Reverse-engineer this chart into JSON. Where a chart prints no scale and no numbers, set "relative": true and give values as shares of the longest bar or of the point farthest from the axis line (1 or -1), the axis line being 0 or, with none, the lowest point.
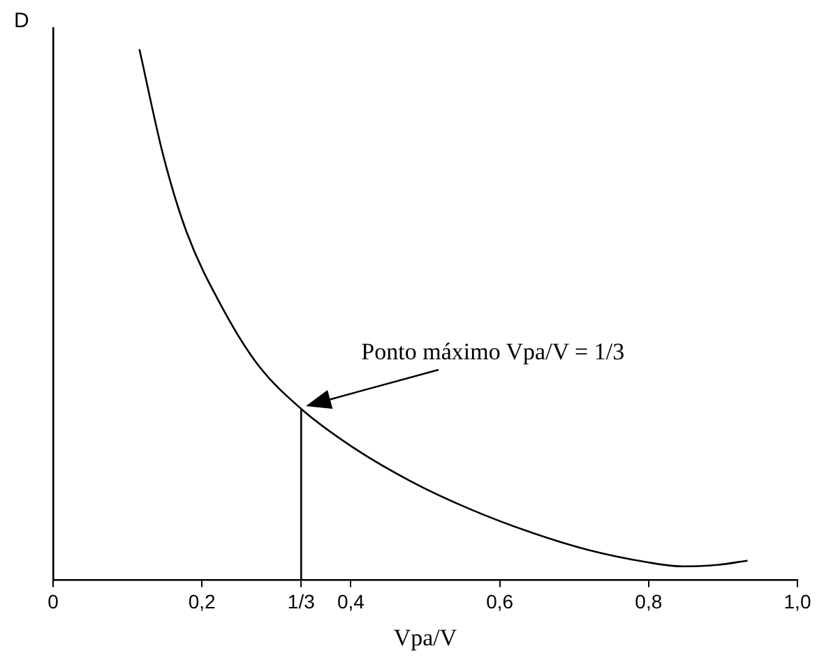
{
  "chart_data": {
    "type": "line",
    "xlabel": "Vpa/V",
    "ylabel": "D",
    "relative": true,
    "grid": false,
    "legend": false,
    "marker": "none",
    "line_style": "solid",
    "xlim": [
      0,
      1.0
    ],
    "xticks": [
      0,
      {
        "value": 0.2,
        "label": "0,2"
      },
      {
        "value": 0.3333,
        "label": "1/3"
      },
      {
        "value": 0.4,
        "label": "0,4"
      },
      {
        "value": 0.6,
        "label": "0,6"
      },
      {
        "value": 0.8,
        "label": "0,8"
      },
      {
        "value": 1.0,
        "label": "1,0"
      }
    ],
    "series": [
      {
        "color": "#000000",
        "x": [
          0.116,
          0.148,
          0.179,
          0.227,
          0.275,
          0.333,
          0.402,
          0.481,
          0.56,
          0.64,
          0.719,
          0.798,
          0.846,
          0.894,
          0.933
        ],
        "values": [
          1.0,
          0.8,
          0.657,
          0.514,
          0.406,
          0.323,
          0.251,
          0.186,
          0.134,
          0.091,
          0.057,
          0.034,
          0.026,
          0.029,
          0.037
        ]
      },
      {
        "color": "#000000",
        "x": [
          0.3333,
          0.3333
        ],
        "values": [
          0,
          0.323
        ]
      }
    ],
    "annotations": [
      {
        "text": "Ponto máximo Vpa/V = 1/3",
        "x": 0.339,
        "y": 0.328
      }
    ]
  }
}
